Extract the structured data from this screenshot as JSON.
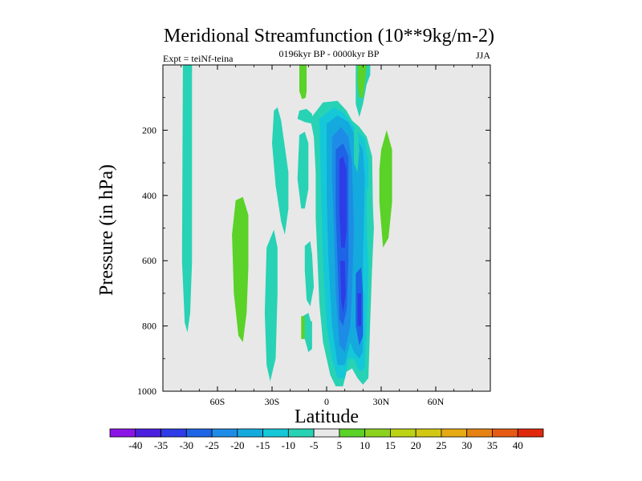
{
  "chart_data": {
    "type": "contour",
    "title": "Meridional Streamfunction (10**9kg/m-2)",
    "subtitle": "0196kyr BP - 0000kyr BP",
    "left_label": "Expt = teiNf-teina",
    "right_label": "JJA",
    "xlabel": "Latitude",
    "ylabel": "Pressure (in hPa)",
    "xlim": [
      -90,
      90
    ],
    "ylim": [
      1000,
      0
    ],
    "x_ticks": [
      {
        "value": -60,
        "label": "60S"
      },
      {
        "value": -30,
        "label": "30S"
      },
      {
        "value": 0,
        "label": "0"
      },
      {
        "value": 30,
        "label": "30N"
      },
      {
        "value": 60,
        "label": "60N"
      }
    ],
    "y_ticks": [
      {
        "value": 200,
        "label": "200"
      },
      {
        "value": 400,
        "label": "400"
      },
      {
        "value": 600,
        "label": "600"
      },
      {
        "value": 800,
        "label": "800"
      },
      {
        "value": 1000,
        "label": "1000"
      }
    ],
    "background_color": "#e8e8e8",
    "colorbar": {
      "levels": [
        "-40",
        "-35",
        "-30",
        "-25",
        "-20",
        "-15",
        "-10",
        "-5",
        "5",
        "10",
        "15",
        "20",
        "25",
        "30",
        "35",
        "40"
      ],
      "colors": [
        "#8a14e6",
        "#4b1ee0",
        "#2d3ce6",
        "#1e64e6",
        "#1e8ce6",
        "#14aade",
        "#14c8d8",
        "#28d2b4",
        "#e8e8e8",
        "#5ad228",
        "#8cd21e",
        "#bcd214",
        "#d2c814",
        "#e6aa14",
        "#e68214",
        "#e65a14",
        "#e0280a"
      ]
    },
    "regions": [
      {
        "name": "cell-a",
        "color": "#28d2b4",
        "poly": [
          [
            -79,
            0
          ],
          [
            -74,
            0
          ],
          [
            -74,
            600
          ],
          [
            -75,
            760
          ],
          [
            -76.5,
            820
          ],
          [
            -78,
            790
          ],
          [
            -79.5,
            600
          ]
        ]
      },
      {
        "name": "cell-b",
        "color": "#5ad228",
        "poly": [
          [
            -50,
            415
          ],
          [
            -46,
            405
          ],
          [
            -43,
            460
          ],
          [
            -43,
            620
          ],
          [
            -44,
            760
          ],
          [
            -46,
            850
          ],
          [
            -48.5,
            830
          ],
          [
            -51,
            700
          ],
          [
            -52,
            520
          ]
        ]
      },
      {
        "name": "cell-c",
        "color": "#28d2b4",
        "poly": [
          [
            -33,
            560
          ],
          [
            -29,
            505
          ],
          [
            -27,
            560
          ],
          [
            -27,
            700
          ],
          [
            -28,
            900
          ],
          [
            -31,
            970
          ],
          [
            -33,
            920
          ],
          [
            -34,
            760
          ]
        ]
      },
      {
        "name": "cell-d",
        "color": "#28d2b4",
        "poly": [
          [
            -29,
            140
          ],
          [
            -27,
            130
          ],
          [
            -25,
            170
          ],
          [
            -23,
            250
          ],
          [
            -21,
            330
          ],
          [
            -21,
            440
          ],
          [
            -23,
            520
          ],
          [
            -25,
            480
          ],
          [
            -28,
            370
          ],
          [
            -30,
            240
          ]
        ]
      },
      {
        "name": "cell-e",
        "color": "#28d2b4",
        "poly": [
          [
            -15,
            140
          ],
          [
            -11,
            135
          ],
          [
            -8,
            150
          ],
          [
            -8,
            180
          ],
          [
            -12,
            175
          ],
          [
            -16,
            165
          ]
        ]
      },
      {
        "name": "cell-f",
        "color": "#5ad228",
        "poly": [
          [
            -15,
            0
          ],
          [
            -11,
            0
          ],
          [
            -11,
            80
          ],
          [
            -11.5,
            100
          ],
          [
            -13.5,
            105
          ],
          [
            -15,
            80
          ]
        ]
      },
      {
        "name": "cell-g",
        "color": "#28d2b4",
        "poly": [
          [
            -15,
            215
          ],
          [
            -12,
            205
          ],
          [
            -10,
            240
          ],
          [
            -10,
            380
          ],
          [
            -12,
            440
          ],
          [
            -14,
            440
          ],
          [
            -16,
            350
          ]
        ]
      },
      {
        "name": "cell-h",
        "color": "#28d2b4",
        "poly": [
          [
            -12,
            555
          ],
          [
            -9,
            540
          ],
          [
            -8,
            580
          ],
          [
            -7,
            680
          ],
          [
            -9,
            740
          ],
          [
            -11,
            720
          ],
          [
            -12,
            630
          ]
        ]
      },
      {
        "name": "cell-i",
        "color": "#28d2b4",
        "poly": [
          [
            -13,
            770
          ],
          [
            -10,
            760
          ],
          [
            -8,
            800
          ],
          [
            -8,
            870
          ],
          [
            -10,
            880
          ],
          [
            -12,
            840
          ]
        ]
      },
      {
        "name": "cell-j",
        "color": "#5ad228",
        "poly": [
          [
            -14,
            770
          ],
          [
            -12,
            770
          ],
          [
            -12,
            840
          ],
          [
            -14,
            840
          ]
        ]
      },
      {
        "name": "cell-k",
        "color": "#28d2b4",
        "poly": [
          [
            -12,
            790
          ],
          [
            -8,
            785
          ],
          [
            -8,
            800
          ],
          [
            -12,
            805
          ]
        ]
      },
      {
        "name": "cell-l",
        "color": "#28d2b4",
        "poly": [
          [
            -9,
            165
          ],
          [
            -2,
            115
          ],
          [
            6,
            110
          ],
          [
            11,
            140
          ],
          [
            14,
            170
          ],
          [
            18,
            190
          ],
          [
            22,
            220
          ],
          [
            25,
            280
          ],
          [
            25.5,
            450
          ],
          [
            25,
            620
          ],
          [
            24,
            780
          ],
          [
            23,
            960
          ],
          [
            20,
            980
          ],
          [
            17,
            960
          ],
          [
            14,
            930
          ],
          [
            11,
            940
          ],
          [
            9,
            985
          ],
          [
            5,
            985
          ],
          [
            2,
            950
          ],
          [
            -2,
            850
          ],
          [
            -4,
            730
          ],
          [
            -5,
            600
          ],
          [
            -6,
            470
          ],
          [
            -6,
            330
          ],
          [
            -7,
            220
          ]
        ]
      },
      {
        "name": "cell-m",
        "color": "#14c8d8",
        "poly": [
          [
            -4,
            165
          ],
          [
            4,
            130
          ],
          [
            10,
            150
          ],
          [
            15,
            190
          ],
          [
            21,
            230
          ],
          [
            23,
            300
          ],
          [
            23,
            620
          ],
          [
            22,
            800
          ],
          [
            21,
            930
          ],
          [
            18,
            940
          ],
          [
            15,
            900
          ],
          [
            12,
            900
          ],
          [
            10,
            960
          ],
          [
            6,
            960
          ],
          [
            3,
            900
          ],
          [
            0,
            800
          ],
          [
            -2,
            600
          ],
          [
            -3,
            400
          ]
        ]
      },
      {
        "name": "cell-n",
        "color": "#14aade",
        "poly": [
          [
            0,
            180
          ],
          [
            6,
            155
          ],
          [
            12,
            175
          ],
          [
            16,
            220
          ],
          [
            20,
            260
          ],
          [
            21,
            350
          ],
          [
            20,
            600
          ],
          [
            20,
            880
          ],
          [
            18,
            900
          ],
          [
            15,
            880
          ],
          [
            13,
            850
          ],
          [
            10,
            920
          ],
          [
            6,
            920
          ],
          [
            3,
            800
          ],
          [
            1,
            600
          ],
          [
            0,
            400
          ]
        ]
      },
      {
        "name": "cell-o",
        "color": "#1e8ce6",
        "poly": [
          [
            3,
            220
          ],
          [
            8,
            190
          ],
          [
            12,
            220
          ],
          [
            14,
            300
          ],
          [
            15,
            500
          ],
          [
            14,
            700
          ],
          [
            13,
            800
          ],
          [
            10,
            880
          ],
          [
            7,
            860
          ],
          [
            5,
            700
          ],
          [
            4,
            500
          ],
          [
            3,
            350
          ]
        ]
      },
      {
        "name": "cell-p",
        "color": "#1e64e6",
        "poly": [
          [
            5,
            260
          ],
          [
            9,
            240
          ],
          [
            12,
            280
          ],
          [
            12,
            460
          ],
          [
            12,
            600
          ],
          [
            11,
            750
          ],
          [
            9,
            800
          ],
          [
            7,
            780
          ],
          [
            6,
            600
          ],
          [
            5,
            450
          ]
        ]
      },
      {
        "name": "cell-q",
        "color": "#2d3ce6",
        "poly": [
          [
            7,
            290
          ],
          [
            9,
            280
          ],
          [
            11,
            320
          ],
          [
            11,
            500
          ],
          [
            10,
            560
          ],
          [
            8,
            560
          ],
          [
            7,
            450
          ]
        ]
      },
      {
        "name": "cell-r",
        "color": "#2d3ce6",
        "poly": [
          [
            7.5,
            600
          ],
          [
            10,
            600
          ],
          [
            10.5,
            700
          ],
          [
            9,
            760
          ],
          [
            8,
            720
          ]
        ]
      },
      {
        "name": "cell-s",
        "color": "#1e64e6",
        "poly": [
          [
            16,
            640
          ],
          [
            19,
            620
          ],
          [
            20,
            700
          ],
          [
            20,
            830
          ],
          [
            18,
            860
          ],
          [
            16,
            800
          ]
        ]
      },
      {
        "name": "cell-t",
        "color": "#2d3ce6",
        "poly": [
          [
            17,
            700
          ],
          [
            19,
            700
          ],
          [
            19,
            800
          ],
          [
            17,
            800
          ]
        ]
      },
      {
        "name": "cell-u",
        "color": "#28d2b4",
        "poly": [
          [
            16,
            0
          ],
          [
            24,
            0
          ],
          [
            24,
            30
          ],
          [
            22,
            60
          ],
          [
            20,
            120
          ],
          [
            18,
            160
          ],
          [
            16,
            120
          ]
        ]
      },
      {
        "name": "cell-v",
        "color": "#5ad228",
        "poly": [
          [
            17,
            0
          ],
          [
            22,
            0
          ],
          [
            21,
            60
          ],
          [
            20,
            100
          ],
          [
            18,
            100
          ],
          [
            17,
            60
          ]
        ]
      },
      {
        "name": "cell-w",
        "color": "#28d2b4",
        "poly": [
          [
            15,
            200
          ],
          [
            17,
            190
          ],
          [
            18,
            260
          ],
          [
            17,
            330
          ],
          [
            15,
            300
          ]
        ]
      },
      {
        "name": "cell-x",
        "color": "#5ad228",
        "poly": [
          [
            30,
            260
          ],
          [
            33,
            200
          ],
          [
            36,
            260
          ],
          [
            36,
            420
          ],
          [
            34,
            530
          ],
          [
            31,
            560
          ],
          [
            29,
            420
          ],
          [
            29,
            320
          ]
        ]
      },
      {
        "name": "cell-y",
        "color": "#28d2b4",
        "poly": [
          [
            22,
            380
          ],
          [
            25,
            380
          ],
          [
            26,
            500
          ],
          [
            25,
            620
          ],
          [
            23,
            620
          ],
          [
            22,
            500
          ]
        ]
      }
    ]
  }
}
